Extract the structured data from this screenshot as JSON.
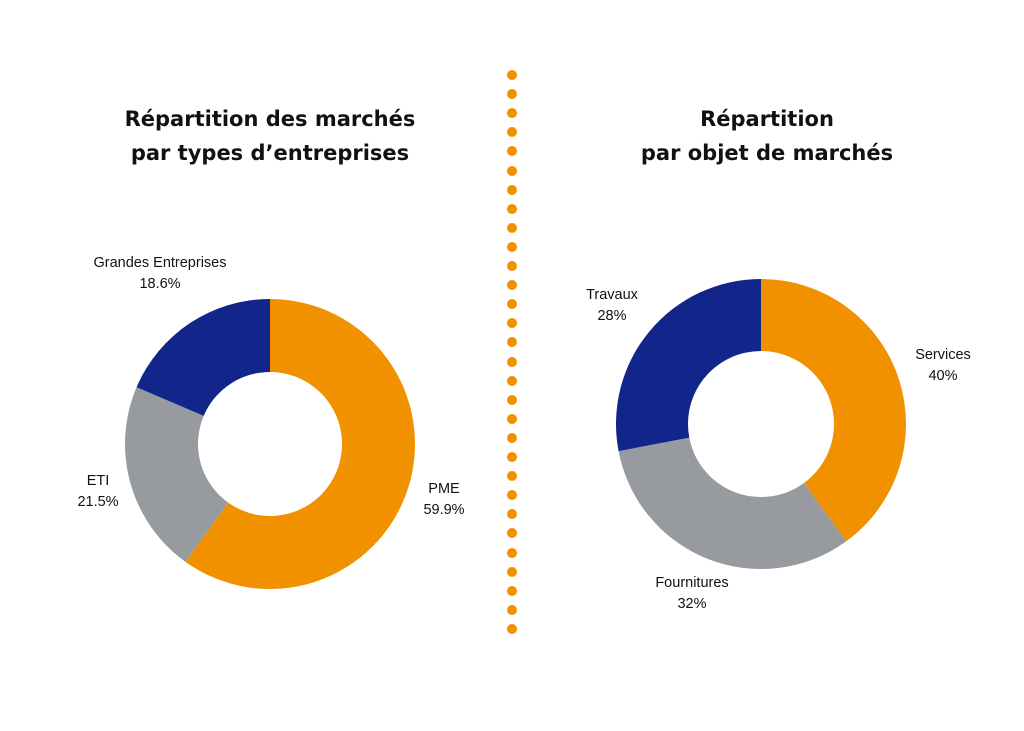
{
  "colors": {
    "orange": "#F29100",
    "grey": "#979B9F",
    "navy": "#12258A",
    "divider": "#F29100"
  },
  "chart_data": [
    {
      "type": "pie",
      "variant": "donut",
      "title": [
        "Répartition des marchés",
        "par types d’entreprises"
      ],
      "categories": [
        "PME",
        "ETI",
        "Grandes Entreprises"
      ],
      "values": [
        59.9,
        21.5,
        18.6
      ],
      "value_labels": [
        "59.9%",
        "21.5%",
        "18.6%"
      ],
      "unit": "%",
      "colors": [
        "#F29100",
        "#979B9F",
        "#12258A"
      ],
      "legend": "none"
    },
    {
      "type": "pie",
      "variant": "donut",
      "title": [
        "Répartition",
        "par objet de marchés"
      ],
      "categories": [
        "Services",
        "Fournitures",
        "Travaux"
      ],
      "values": [
        40,
        32,
        28
      ],
      "value_labels": [
        "40%",
        "32%",
        "28%"
      ],
      "unit": "%",
      "colors": [
        "#F29100",
        "#979B9F",
        "#12258A"
      ],
      "legend": "none"
    }
  ]
}
